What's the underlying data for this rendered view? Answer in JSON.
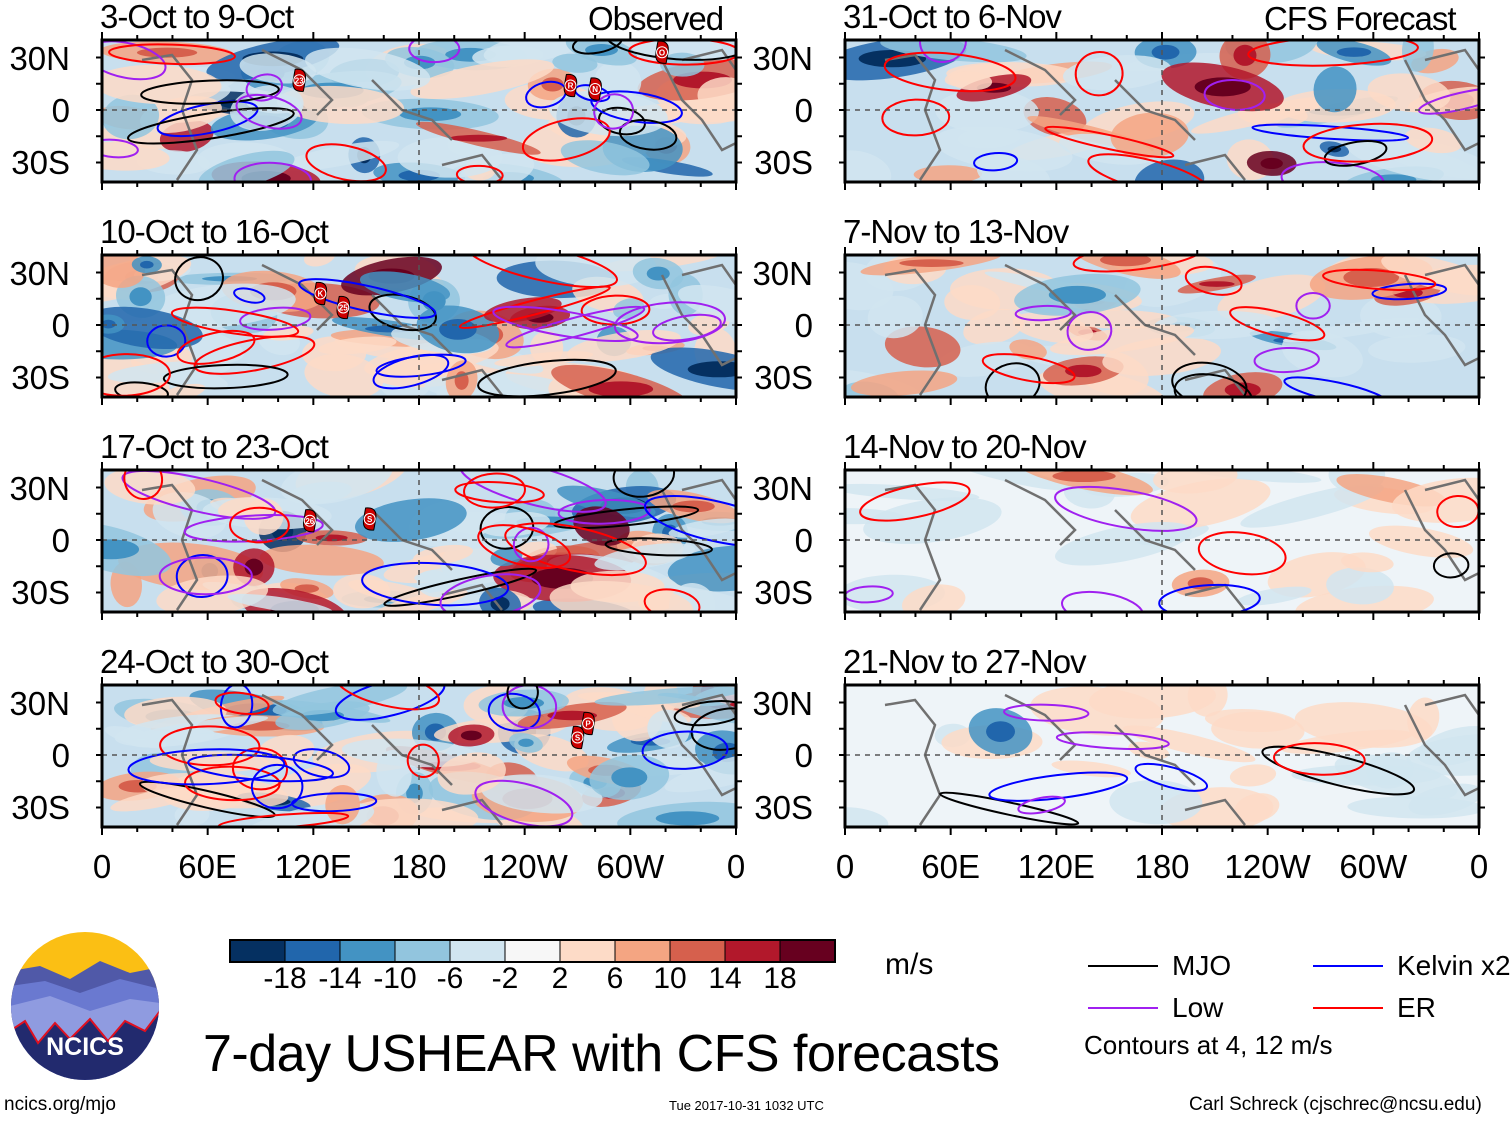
{
  "figure_title": "7-day USHEAR with CFS forecasts",
  "left_header": "Observed",
  "right_header": "CFS Forecast",
  "units": "m/s",
  "footer": {
    "left": "ncics.org/mjo",
    "center": "Tue 2017-10-31 1032 UTC",
    "right": "Carl Schreck (cjschrec@ncsu.edu)"
  },
  "logo": {
    "text": "NCICS"
  },
  "legend": {
    "items": [
      {
        "label": "MJO",
        "color": "#000000"
      },
      {
        "label": "Kelvin x2",
        "color": "#0000ff"
      },
      {
        "label": "Low",
        "color": "#a020f0"
      },
      {
        "label": "ER",
        "color": "#ff0000"
      }
    ],
    "note": "Contours at 4, 12 m/s"
  },
  "chart_data": {
    "type": "heatmap",
    "variable": "USHEAR",
    "ylim": [
      -40,
      40
    ],
    "xlim": [
      0,
      360
    ],
    "y_ticks": [
      "30N",
      "0",
      "30S"
    ],
    "x_ticks": [
      "0",
      "60E",
      "120E",
      "180",
      "120W",
      "60W",
      "0"
    ],
    "colorbar": {
      "labels": [
        "-18",
        "-14",
        "-10",
        "-6",
        "-2",
        "2",
        "6",
        "10",
        "14",
        "18"
      ],
      "colors": [
        "#053061",
        "#2166ac",
        "#4393c3",
        "#92c5de",
        "#d1e5f0",
        "#f7f7f7",
        "#fddbc7",
        "#f4a582",
        "#d6604d",
        "#b2182b",
        "#67001f"
      ]
    },
    "panels": [
      {
        "title": "3-Oct to 9-Oct",
        "kind": "observed",
        "storms": [
          {
            "label": "23",
            "lon": 112,
            "lat": 17
          },
          {
            "label": "R",
            "lon": 266,
            "lat": 14
          },
          {
            "label": "N",
            "lon": 280,
            "lat": 12
          },
          {
            "label": "O",
            "lon": 318,
            "lat": 33
          }
        ]
      },
      {
        "title": "10-Oct to 16-Oct",
        "kind": "observed",
        "storms": [
          {
            "label": "K",
            "lon": 124,
            "lat": 18
          },
          {
            "label": "25",
            "lon": 137,
            "lat": 10
          }
        ]
      },
      {
        "title": "17-Oct to 23-Oct",
        "kind": "observed",
        "storms": [
          {
            "label": "26",
            "lon": 118,
            "lat": 11
          },
          {
            "label": "S",
            "lon": 152,
            "lat": 12
          }
        ]
      },
      {
        "title": "24-Oct to 30-Oct",
        "kind": "observed",
        "storms": [
          {
            "label": "P",
            "lon": 276,
            "lat": 18
          },
          {
            "label": "S",
            "lon": 270,
            "lat": 10
          }
        ]
      },
      {
        "title": "31-Oct to 6-Nov",
        "kind": "forecast",
        "storms": []
      },
      {
        "title": "7-Nov to 13-Nov",
        "kind": "forecast",
        "storms": []
      },
      {
        "title": "14-Nov to 20-Nov",
        "kind": "forecast",
        "storms": []
      },
      {
        "title": "21-Nov to 27-Nov",
        "kind": "forecast",
        "storms": []
      }
    ]
  }
}
